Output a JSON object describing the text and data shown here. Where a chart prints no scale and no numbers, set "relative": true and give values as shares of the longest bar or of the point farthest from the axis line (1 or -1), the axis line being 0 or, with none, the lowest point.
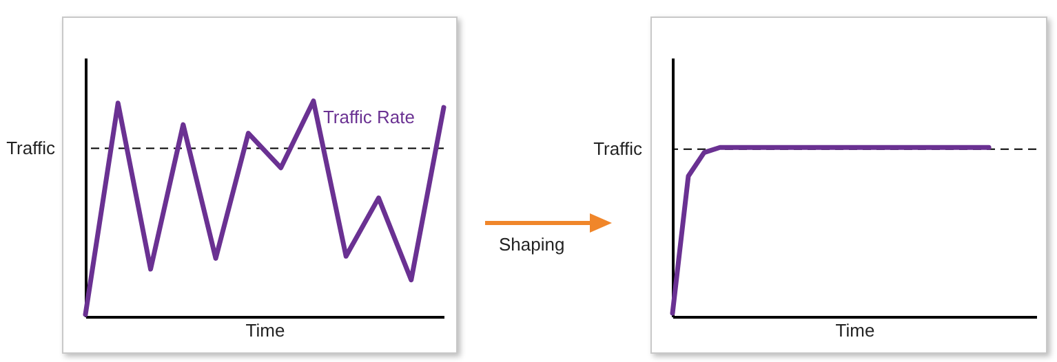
{
  "chart_data": [
    {
      "type": "line",
      "xlabel": "Time",
      "relative": true,
      "tick_labels": false,
      "marker": "none",
      "line_style": "solid",
      "categories": [
        null,
        null,
        null,
        null,
        null,
        null,
        null,
        null,
        null,
        null,
        null,
        null
      ],
      "series": [
        {
          "name": "Traffic Rate",
          "color": "#6a3192",
          "values": [
            0.01,
            0.99,
            0.22,
            0.89,
            0.27,
            0.85,
            0.69,
            1.0,
            0.28,
            0.55,
            0.17,
            0.97
          ]
        }
      ],
      "ref_lines": [
        {
          "axis": "y",
          "value": 0.78,
          "label": "Traffic",
          "color": "#000000",
          "line_style": "dashed"
        }
      ]
    },
    {
      "type": "line",
      "xlabel": "Time",
      "relative": true,
      "tick_labels": false,
      "marker": "none",
      "line_style": "solid",
      "categories": [
        null,
        null,
        null,
        null,
        null,
        null,
        null,
        null,
        null,
        null,
        null,
        null,
        null,
        null,
        null,
        null,
        null,
        null,
        null,
        null,
        null,
        null,
        null,
        null
      ],
      "series": [
        {
          "color": "#6a3192",
          "values": [
            0.02,
            0.83,
            0.97,
            1.0,
            1.0,
            1.0,
            1.0,
            1.0,
            1.0,
            1.0,
            1.0,
            1.0,
            1.0,
            1.0,
            1.0,
            1.0,
            1.0,
            1.0,
            1.0,
            1.0,
            1.0,
            null,
            null,
            null
          ]
        }
      ],
      "ref_lines": [
        {
          "axis": "y",
          "value": 0.99,
          "label": "Traffic",
          "color": "#000000",
          "line_style": "dashed"
        }
      ],
      "annotations": [
        "Shaping"
      ]
    }
  ]
}
